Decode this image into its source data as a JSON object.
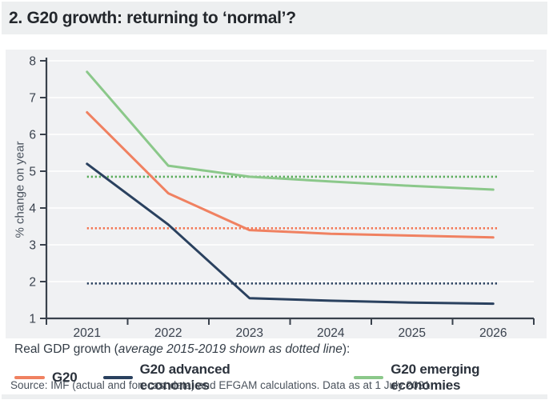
{
  "title": "2. G20 growth: returning to ‘normal’?",
  "caption": {
    "prefix": "Real GDP growth (",
    "italic": "average 2015-2019 shown as dotted line",
    "suffix": "):"
  },
  "source": "Source: IMF (actual and forecast data) and EFGAM calculations. Data as at 1 July 2021.",
  "colors": {
    "title_bar_bg": "#edeff0",
    "panel_bg": "#f0f1f3",
    "axis": "#39414c",
    "grid": "#ffffff",
    "g20": "#f08161",
    "g20_dotted": "#f4734f",
    "advanced": "#2a415f",
    "advanced_dotted": "#2a415f",
    "emerging": "#8bc88a",
    "emerging_dotted": "#56ab57"
  },
  "legend": [
    {
      "label": "G20",
      "color": "#f08161"
    },
    {
      "label": "G20 advanced economies",
      "color": "#2a415f"
    },
    {
      "label": "G20 emerging economies",
      "color": "#8bc88a"
    }
  ],
  "chart_data": {
    "type": "line",
    "title": "2. G20 growth: returning to ‘normal’?",
    "xlabel": "",
    "ylabel": "% change on year",
    "ylim": [
      1,
      8
    ],
    "yticks": [
      1,
      2,
      3,
      4,
      5,
      6,
      7,
      8
    ],
    "grid": "horizontal",
    "legend_position": "below",
    "categories": [
      "2021",
      "2022",
      "2023",
      "2024",
      "2025",
      "2026"
    ],
    "series": [
      {
        "name": "G20",
        "color": "#f08161",
        "style": "solid",
        "values": [
          6.6,
          4.4,
          3.4,
          3.3,
          3.25,
          3.2
        ]
      },
      {
        "name": "G20 advanced economies",
        "color": "#2a415f",
        "style": "solid",
        "values": [
          5.2,
          3.55,
          1.55,
          1.48,
          1.43,
          1.4
        ]
      },
      {
        "name": "G20 emerging economies",
        "color": "#8bc88a",
        "style": "solid",
        "values": [
          7.7,
          5.15,
          4.85,
          4.72,
          4.6,
          4.5
        ]
      }
    ],
    "dotted_baselines": [
      {
        "series": "G20",
        "label": "G20 average 2015-2019",
        "value": 3.45,
        "color": "#f4734f"
      },
      {
        "series": "G20 advanced economies",
        "label": "G20 advanced economies average 2015-2019",
        "value": 1.95,
        "color": "#2a415f"
      },
      {
        "series": "G20 emerging economies",
        "label": "G20 emerging economies average 2015-2019",
        "value": 4.85,
        "color": "#56ab57"
      }
    ]
  }
}
